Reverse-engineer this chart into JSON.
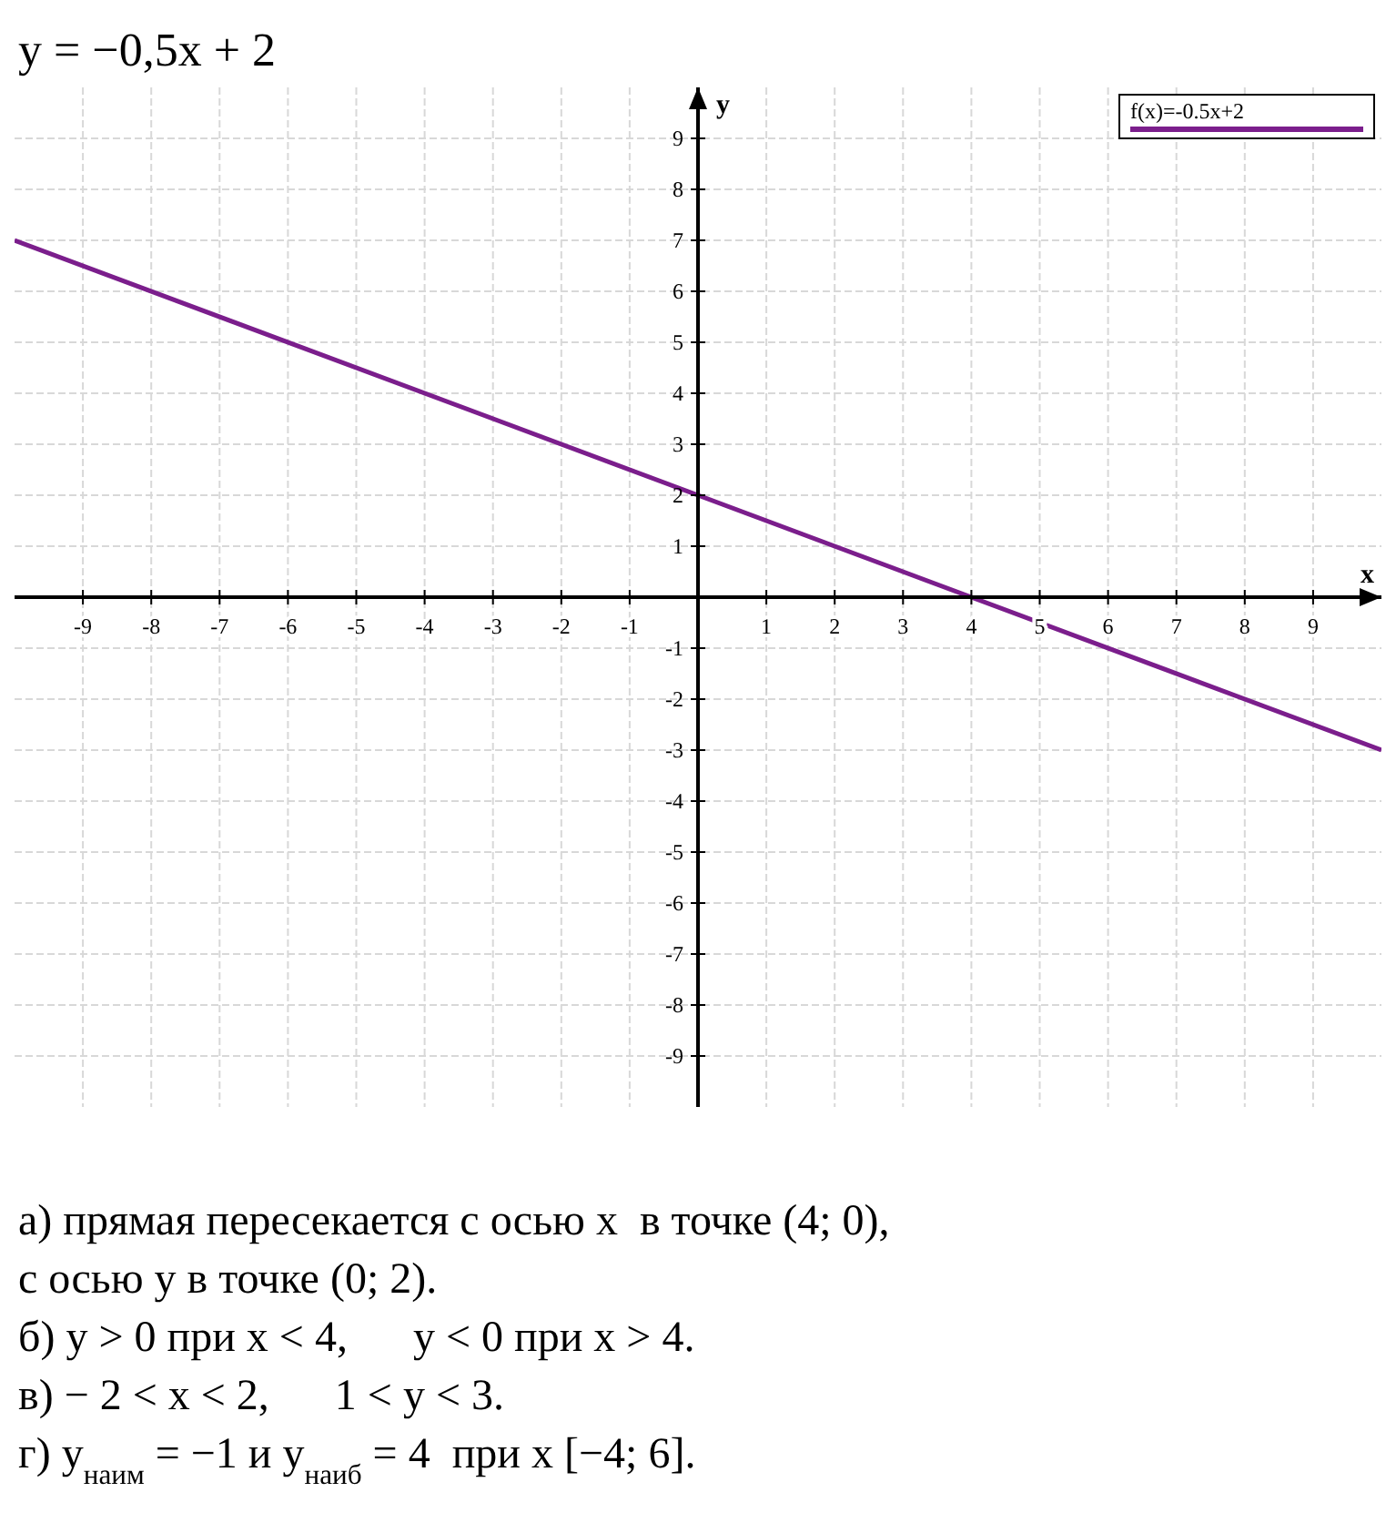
{
  "chart_data": {
    "type": "line",
    "title": "y = −0,5x + 2",
    "xlabel": "x",
    "ylabel": "y",
    "xlim": [
      -10,
      10
    ],
    "ylim": [
      -10,
      10
    ],
    "xticks": [
      -9,
      -8,
      -7,
      -6,
      -5,
      -4,
      -3,
      -2,
      -1,
      1,
      2,
      3,
      4,
      5,
      6,
      7,
      8,
      9
    ],
    "yticks": [
      -9,
      -8,
      -7,
      -6,
      -5,
      -4,
      -3,
      -2,
      -1,
      1,
      2,
      3,
      4,
      5,
      6,
      7,
      8,
      9
    ],
    "grid": true,
    "legend": "top right",
    "series": [
      {
        "name": "f(x)=-0.5x+2",
        "color": "#7b1e8c",
        "x": [
          -10,
          10
        ],
        "values": [
          7,
          -3
        ]
      }
    ],
    "annotations": [
      "а) прямая пересекается с осью x  в точке (4; 0),",
      "с осью y в точке (0; 2).",
      "б) y > 0 при x < 4,      y < 0 при x > 4.",
      "в) − 2 < x < 2,      1 < y < 3.",
      "г) y$_{наим}$ = −1 и y$_{наиб}$ = 4  при x [−4; 6]."
    ]
  }
}
